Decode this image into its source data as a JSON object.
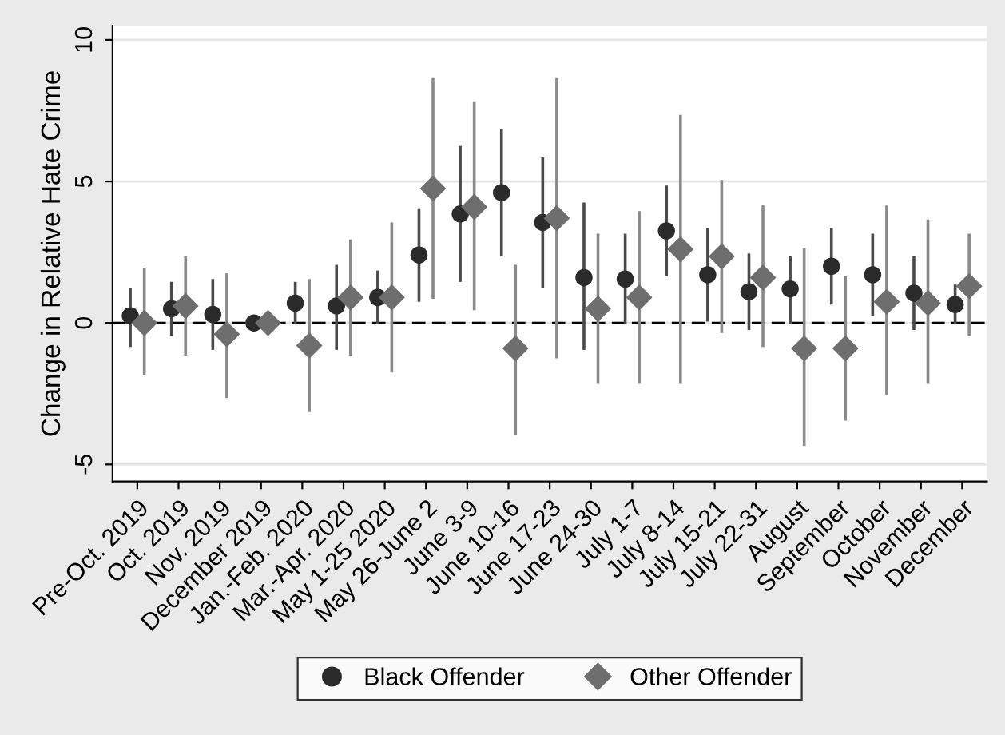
{
  "chart_data": {
    "type": "scatter",
    "ylabel": "Change in Relative Hate Crime",
    "categories": [
      "Pre-Oct. 2019",
      "Oct. 2019",
      "Nov. 2019",
      "December 2019",
      "Jan.-Feb. 2020",
      "Mar.-Apr. 2020",
      "May 1-25 2020",
      "May 26-June 2",
      "June 3-9",
      "June 10-16",
      "June 17-23",
      "June 24-30",
      "July 1-7",
      "July 8-14",
      "July 15-21",
      "July 22-31",
      "August",
      "September",
      "October",
      "November",
      "December"
    ],
    "series": [
      {
        "name": "Black Offender",
        "color": "#2b2b2b",
        "marker": "circle",
        "values": [
          0.25,
          0.5,
          0.3,
          0,
          0.7,
          0.6,
          0.9,
          2.4,
          3.85,
          4.6,
          3.55,
          1.6,
          1.55,
          3.25,
          1.7,
          1.1,
          1.2,
          2.0,
          1.7,
          1.05,
          0.65
        ],
        "errors": [
          [
            -0.8,
            1.2
          ],
          [
            -0.4,
            1.4
          ],
          [
            -0.9,
            1.5
          ],
          null,
          [
            0,
            1.4
          ],
          [
            -0.9,
            2.0
          ],
          [
            0,
            1.8
          ],
          [
            0.8,
            4.0
          ],
          [
            1.5,
            6.2
          ],
          [
            2.4,
            6.8
          ],
          [
            1.3,
            5.8
          ],
          [
            -0.9,
            4.2
          ],
          [
            0,
            3.1
          ],
          [
            1.7,
            4.8
          ],
          [
            0.1,
            3.3
          ],
          [
            -0.2,
            2.4
          ],
          [
            0,
            2.3
          ],
          [
            0.7,
            3.3
          ],
          [
            0.3,
            3.1
          ],
          [
            -0.2,
            2.3
          ],
          [
            0,
            1.3
          ]
        ]
      },
      {
        "name": "Other Offender",
        "color": "#6e6e6e",
        "marker": "diamond",
        "values": [
          0,
          0.6,
          -0.4,
          0,
          -0.8,
          0.9,
          0.9,
          4.75,
          4.1,
          -0.9,
          3.7,
          0.5,
          0.9,
          2.6,
          2.35,
          1.6,
          -0.9,
          -0.9,
          0.75,
          0.7,
          1.3
        ],
        "errors": [
          [
            -1.8,
            1.9
          ],
          [
            -1.1,
            2.3
          ],
          [
            -2.6,
            1.7
          ],
          null,
          [
            -3.1,
            1.5
          ],
          [
            -1.1,
            2.9
          ],
          [
            -1.7,
            3.5
          ],
          [
            0.9,
            8.6
          ],
          [
            0.5,
            7.75
          ],
          [
            -3.9,
            2.0
          ],
          [
            -1.2,
            8.6
          ],
          [
            -2.1,
            3.1
          ],
          [
            -2.1,
            3.9
          ],
          [
            -2.1,
            7.3
          ],
          [
            -0.3,
            5.0
          ],
          [
            -0.8,
            4.1
          ],
          [
            -4.3,
            2.6
          ],
          [
            -3.4,
            1.6
          ],
          [
            -2.5,
            4.1
          ],
          [
            -2.1,
            3.6
          ],
          [
            -0.4,
            3.1
          ]
        ]
      }
    ],
    "ylim": [
      -5.6,
      10.5
    ],
    "yticks": [
      -5,
      0,
      5,
      10
    ],
    "ref_lines": [
      {
        "axis": "y",
        "value": 0,
        "color": "#000000",
        "line_style": "dashed"
      }
    ],
    "grid": "y",
    "legend": "bottom"
  }
}
